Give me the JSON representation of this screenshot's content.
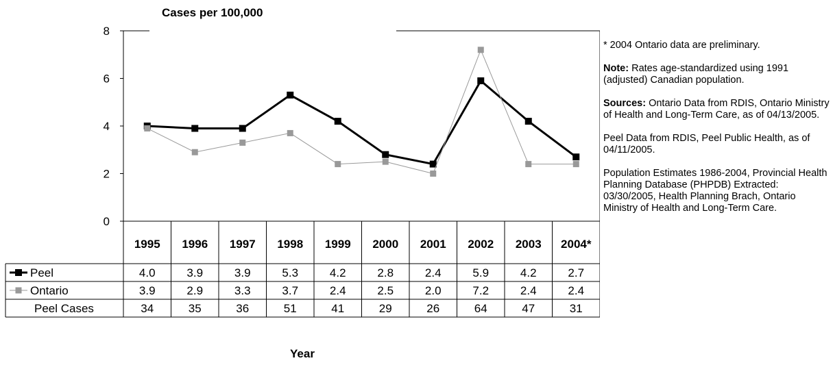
{
  "chart_data": {
    "type": "line",
    "title": "Cases per 100,000",
    "xlabel": "Year",
    "ylabel": "",
    "ylim": [
      0,
      8
    ],
    "yticks": [
      "0",
      "2",
      "4",
      "6",
      "8"
    ],
    "categories": [
      "1995",
      "1996",
      "1997",
      "1998",
      "1999",
      "2000",
      "2001",
      "2002",
      "2003",
      "2004*"
    ],
    "series": [
      {
        "name": "Peel",
        "color": "#000000",
        "values": [
          4.0,
          3.9,
          3.9,
          5.3,
          4.2,
          2.8,
          2.4,
          5.9,
          4.2,
          2.7
        ],
        "labels": [
          "4.0",
          "3.9",
          "3.9",
          "5.3",
          "4.2",
          "2.8",
          "2.4",
          "5.9",
          "4.2",
          "2.7"
        ]
      },
      {
        "name": "Ontario",
        "color": "#999999",
        "values": [
          3.9,
          2.9,
          3.3,
          3.7,
          2.4,
          2.5,
          2.0,
          7.2,
          2.4,
          2.4
        ],
        "labels": [
          "3.9",
          "2.9",
          "3.3",
          "3.7",
          "2.4",
          "2.5",
          "2.0",
          "7.2",
          "2.4",
          "2.4"
        ]
      }
    ],
    "table_row": {
      "name": "Peel Cases",
      "values": [
        "34",
        "35",
        "36",
        "51",
        "41",
        "29",
        "26",
        "64",
        "47",
        "31"
      ]
    },
    "grid": false,
    "legend": "data-table"
  },
  "notes": {
    "n1": "* 2004 Ontario data are preliminary.",
    "n2_label": "Note:",
    "n2_text": " Rates age-standardized using 1991 (adjusted) Canadian population.",
    "n3_label": "Sources:",
    "n3_text": " Ontario Data from RDIS, Ontario Ministry of Health and Long-Term Care, as of 04/13/2005.",
    "n4": "Peel Data from RDIS, Peel Public Health, as of 04/11/2005.",
    "n5": "Population Estimates 1986-2004, Provincial Health Planning Database (PHPDB) Extracted: 03/30/2005, Health Planning Brach, Ontario Ministry of Health and Long-Term Care."
  }
}
